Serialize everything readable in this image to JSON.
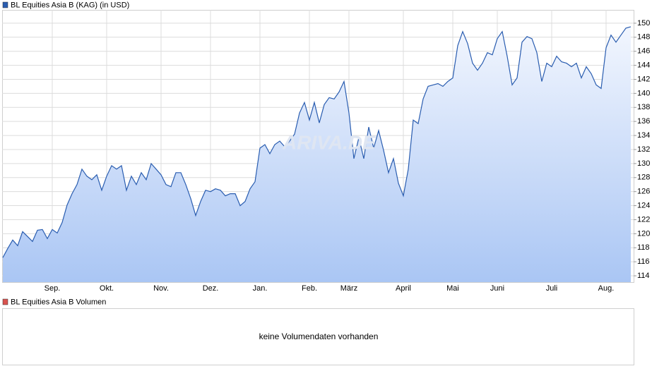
{
  "chart_data": {
    "type": "line",
    "legend": "BL Equities Asia B (KAG) (in USD)",
    "watermark": "ARIVA.DE",
    "categories": [
      null,
      null,
      null,
      null,
      null,
      null,
      null,
      null,
      null,
      null,
      "Sep.",
      null,
      null,
      null,
      null,
      null,
      null,
      null,
      null,
      null,
      null,
      "Okt.",
      null,
      null,
      null,
      null,
      null,
      null,
      null,
      null,
      null,
      null,
      "Nov.",
      null,
      null,
      null,
      null,
      null,
      null,
      null,
      null,
      null,
      "Dez.",
      null,
      null,
      null,
      null,
      null,
      null,
      null,
      null,
      null,
      "Jan.",
      null,
      null,
      null,
      null,
      null,
      null,
      null,
      null,
      null,
      "Feb.",
      null,
      null,
      null,
      null,
      null,
      null,
      null,
      "März",
      null,
      null,
      null,
      null,
      null,
      null,
      null,
      null,
      null,
      null,
      "April",
      null,
      null,
      null,
      null,
      null,
      null,
      null,
      null,
      null,
      "Mai",
      null,
      null,
      null,
      null,
      null,
      null,
      null,
      null,
      "Juni",
      null,
      null,
      null,
      null,
      null,
      null,
      null,
      null,
      null,
      null,
      "Juli",
      null,
      null,
      null,
      null,
      null,
      null,
      null,
      null,
      null,
      null,
      "Aug.",
      null,
      null,
      null,
      null,
      null
    ],
    "series": [
      {
        "name": "BL Equities Asia B (KAG) (in USD)",
        "color": "#2a5db0",
        "values": [
          116.6,
          117.9,
          119.1,
          118.3,
          120.3,
          119.6,
          118.9,
          120.5,
          120.6,
          119.3,
          120.6,
          120.1,
          121.6,
          124.1,
          125.7,
          127.0,
          129.2,
          128.2,
          127.7,
          128.4,
          126.2,
          128.2,
          129.7,
          129.2,
          129.7,
          126.2,
          128.2,
          127.0,
          128.7,
          127.7,
          130.0,
          129.2,
          128.4,
          127.0,
          126.7,
          128.7,
          128.7,
          127.0,
          125.0,
          122.6,
          124.6,
          126.2,
          126.0,
          126.4,
          126.2,
          125.4,
          125.7,
          125.7,
          124.0,
          124.6,
          126.4,
          127.4,
          132.2,
          132.7,
          131.4,
          132.7,
          133.2,
          132.4,
          133.2,
          134.2,
          137.2,
          138.7,
          136.2,
          138.7,
          135.8,
          138.4,
          139.4,
          139.2,
          140.2,
          141.7,
          137.2,
          130.7,
          133.7,
          130.7,
          135.2,
          132.2,
          134.7,
          131.9,
          128.7,
          130.7,
          127.2,
          125.4,
          129.2,
          136.2,
          135.7,
          139.2,
          141.0,
          141.2,
          141.4,
          141.0,
          141.7,
          142.2,
          146.8,
          148.8,
          147.1,
          144.3,
          143.3,
          144.3,
          145.8,
          145.5,
          147.8,
          148.8,
          145.3,
          141.2,
          142.2,
          147.3,
          148.1,
          147.8,
          145.8,
          141.7,
          144.3,
          143.8,
          145.3,
          144.5,
          144.3,
          143.8,
          144.3,
          142.2,
          143.8,
          142.8,
          141.2,
          140.7,
          146.5,
          148.3,
          147.3,
          148.3,
          149.3,
          149.5
        ]
      }
    ],
    "ylim": [
      113.1,
      151.9
    ],
    "yticks": [
      114,
      116,
      118,
      120,
      122,
      124,
      126,
      128,
      130,
      132,
      134,
      136,
      138,
      140,
      142,
      144,
      146,
      148,
      150
    ],
    "grid": true
  },
  "volume_panel": {
    "legend": "BL Equities Asia B Volumen",
    "legend_color": "#d9534f",
    "message": "keine Volumendaten vorhanden"
  }
}
